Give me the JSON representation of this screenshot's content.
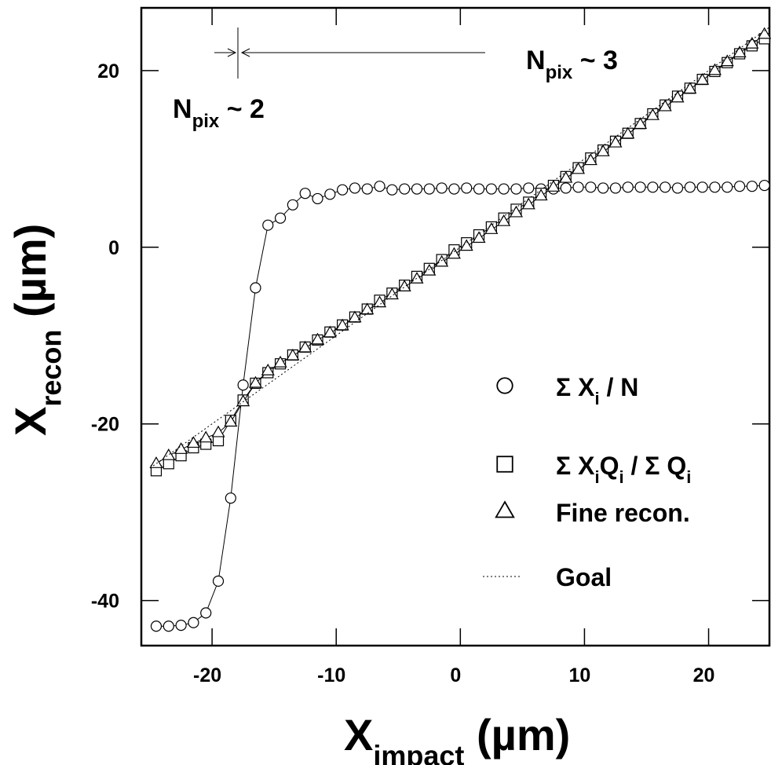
{
  "chart_data": {
    "type": "line",
    "x_label": [
      "X",
      "impact",
      " (µm)"
    ],
    "y_label": [
      "X",
      "recon",
      " (µm)"
    ],
    "annotations": [
      [
        "N",
        "pix",
        " ~ 3"
      ],
      [
        "N",
        "pix",
        " ~ 2"
      ]
    ],
    "xlim": [
      -25.7,
      24.9
    ],
    "ylim": [
      -45.1,
      27.1
    ],
    "xticks": [
      -20,
      -10,
      0,
      10,
      20
    ],
    "yticks": [
      -40,
      -20,
      0,
      20
    ],
    "x": [
      -24.5,
      -23.5,
      -22.5,
      -21.5,
      -20.5,
      -19.5,
      -18.5,
      -17.5,
      -16.5,
      -15.5,
      -14.5,
      -13.5,
      -12.5,
      -11.5,
      -10.5,
      -9.5,
      -8.5,
      -7.5,
      -6.5,
      -5.5,
      -4.5,
      -3.5,
      -2.5,
      -1.5,
      -0.5,
      0.5,
      1.5,
      2.5,
      3.5,
      4.5,
      5.5,
      6.5,
      7.5,
      8.5,
      9.5,
      10.5,
      11.5,
      12.5,
      13.5,
      14.5,
      15.5,
      16.5,
      17.5,
      18.5,
      19.5,
      20.5,
      21.5,
      22.5,
      23.5,
      24.5
    ],
    "series": [
      {
        "name": [
          "Σ X",
          "i",
          " / N"
        ],
        "marker": "circle",
        "color": "#000000",
        "values": [
          -42.9,
          -42.9,
          -42.8,
          -42.5,
          -41.4,
          -37.8,
          -28.4,
          -15.6,
          -4.6,
          2.5,
          3.3,
          4.8,
          6.1,
          5.5,
          6.0,
          6.5,
          6.7,
          6.6,
          6.9,
          6.5,
          6.6,
          6.6,
          6.6,
          6.7,
          6.6,
          6.7,
          6.6,
          6.6,
          6.6,
          6.6,
          6.7,
          6.6,
          6.6,
          6.7,
          6.8,
          6.8,
          6.7,
          6.7,
          6.8,
          6.8,
          6.8,
          6.8,
          6.7,
          6.8,
          6.8,
          6.8,
          6.8,
          6.9,
          6.9,
          7.0
        ]
      },
      {
        "name": [
          "Σ X",
          "i",
          "Q",
          "i",
          " / Σ Q",
          "i"
        ],
        "marker": "square",
        "color": "#000000",
        "values": [
          -25.3,
          -24.5,
          -23.6,
          -22.7,
          -22.3,
          -21.9,
          -19.6,
          -17.3,
          -15.4,
          -14.2,
          -13.2,
          -12.2,
          -11.3,
          -10.5,
          -9.6,
          -8.8,
          -7.9,
          -7.0,
          -6.0,
          -5.2,
          -4.3,
          -3.3,
          -2.4,
          -1.4,
          -0.3,
          0.5,
          1.4,
          2.3,
          3.3,
          4.3,
          5.1,
          6.1,
          7.0,
          8.0,
          9.0,
          10.1,
          11.0,
          12.0,
          12.9,
          14.0,
          15.1,
          16.1,
          17.1,
          18.0,
          19.0,
          19.9,
          20.9,
          21.9,
          22.8,
          23.6
        ]
      },
      {
        "name": [
          "Fine recon."
        ],
        "marker": "triangle",
        "color": "#000000",
        "values": [
          -24.5,
          -23.6,
          -22.9,
          -22.2,
          -21.6,
          -21.0,
          -19.8,
          -17.5,
          -15.4,
          -14.0,
          -13.1,
          -12.3,
          -11.4,
          -10.5,
          -9.7,
          -8.9,
          -8.0,
          -7.1,
          -6.3,
          -5.4,
          -4.5,
          -3.6,
          -2.7,
          -1.7,
          -0.8,
          0.1,
          1.0,
          2.0,
          2.9,
          3.9,
          4.8,
          5.8,
          6.8,
          7.8,
          8.8,
          9.8,
          10.8,
          11.8,
          12.8,
          13.9,
          14.9,
          15.9,
          16.9,
          17.9,
          18.9,
          20.0,
          21.0,
          22.0,
          23.0,
          24.1
        ]
      },
      {
        "name": [
          "Goal"
        ],
        "marker": "dotted",
        "color": "#000000",
        "x": [
          -25,
          25
        ],
        "values": [
          -25,
          25
        ]
      }
    ]
  }
}
